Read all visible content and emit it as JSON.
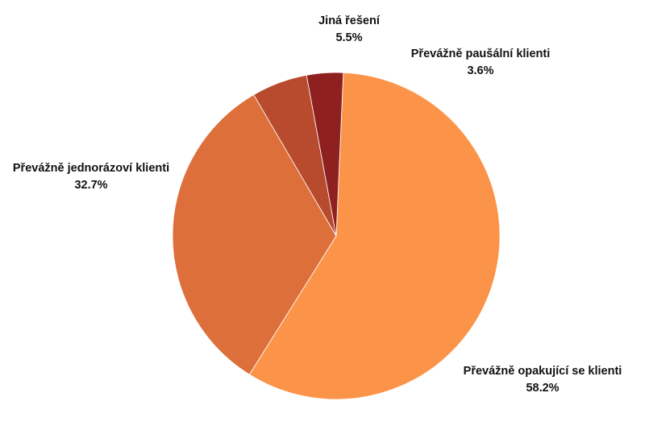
{
  "chart_data": {
    "type": "pie",
    "slices": [
      {
        "label": "Převážně opakující se klienti",
        "value": 58.2,
        "value_label": "58.2%",
        "color": "#fb9449"
      },
      {
        "label": "Převážně jednorázoví klienti",
        "value": 32.7,
        "value_label": "32.7%",
        "color": "#dd6f3b"
      },
      {
        "label": "Jiná řešení",
        "value": 5.5,
        "value_label": "5.5%",
        "color": "#b84a2e"
      },
      {
        "label": "Převážně paušální klienti",
        "value": 3.6,
        "value_label": "3.6%",
        "color": "#8e2120"
      }
    ]
  }
}
